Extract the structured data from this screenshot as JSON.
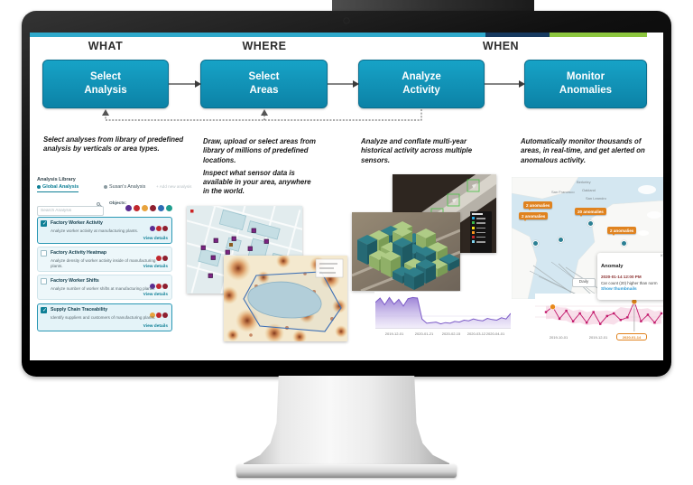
{
  "flow": {
    "headers": [
      "WHAT",
      "WHERE",
      "WHEN"
    ],
    "steps": [
      "Select\nAnalysis",
      "Select\nAreas",
      "Analyze\nActivity",
      "Monitor\nAnomalies"
    ]
  },
  "columns": {
    "what_desc": "Select analyses from library of predefined analysis by verticals or area types.",
    "where_desc_1": "Draw, upload or select areas from library of millions of predefined locations.",
    "where_desc_2": "Inspect what sensor data is available in your area, anywhere in the world.",
    "analyze_desc": "Analyze and conflate multi-year historical activity across multiple sensors.",
    "monitor_desc": "Automatically monitor thousands of areas, in real-time, and get alerted on anomalous activity."
  },
  "library": {
    "title": "Analysis Library",
    "tabs": [
      {
        "label": "Global Analysis",
        "active": true
      },
      {
        "label": "Susan's Analysis",
        "active": false
      },
      {
        "label": "+ Add new analysis",
        "active": false
      }
    ],
    "search_placeholder": "Search Analysis",
    "objects_label": "Objects:",
    "object_colors": [
      "#5C2D91",
      "#C1272D",
      "#E8A33D",
      "#8E1F2F",
      "#2D6CB5",
      "#1F9E8E"
    ],
    "items": [
      {
        "name": "Factory Worker Activity",
        "desc": "Analyze worker activity at manufacturing plants.",
        "checked": true,
        "icon_colors": [
          "#5C2D91",
          "#C1272D",
          "#8E1F2F"
        ],
        "link": "View details"
      },
      {
        "name": "Factory Activity Heatmap",
        "desc": "Analyze density of worker activity inside of manufacturing plants.",
        "checked": false,
        "icon_colors": [
          "#C1272D",
          "#8E1F2F"
        ],
        "link": "View details"
      },
      {
        "name": "Factory Worker Shifts",
        "desc": "Analyze number of worker shifts at manufacturing plants.",
        "checked": false,
        "icon_colors": [
          "#5C2D91",
          "#C1272D",
          "#8E1F2F"
        ],
        "link": "View details"
      },
      {
        "name": "Supply Chain Traceability",
        "desc": "Identify suppliers and customers of manufacturing plants.",
        "checked": true,
        "icon_colors": [
          "#E8A33D",
          "#C1272D",
          "#8E1F2F"
        ],
        "link": "View details"
      }
    ]
  },
  "anomaly_map": {
    "cities": [
      "Berkeley",
      "San Francisco",
      "Oakland",
      "San Leandro",
      "Fremont"
    ],
    "badges": [
      "2 anomalies",
      "2 anomalies",
      "20 anomalies",
      "2 anomalies"
    ],
    "daily_button": "Daily",
    "popup": {
      "title": "Anomaly",
      "close_icon": "×",
      "timestamp": "2020-01-14 12:00 PM",
      "message": "Car count (20) higher than norm",
      "link": "Show thumbnails"
    }
  },
  "chart_data": [
    {
      "name": "historical-activity-timeline",
      "type": "area",
      "x_ticks": [
        "2019-12-01",
        "2020-01-21",
        "2020-02-15",
        "2020-03-12",
        "2020-04-01"
      ],
      "values": [
        40,
        47,
        36,
        48,
        37,
        45,
        34,
        46,
        48,
        47,
        13,
        6,
        7,
        8,
        5,
        7,
        6,
        9,
        8,
        11,
        10,
        13,
        11,
        10,
        14,
        12,
        11,
        15,
        13,
        22
      ],
      "ylim": [
        0,
        50
      ],
      "color": "#7C5BC7"
    },
    {
      "name": "car-count-anomaly-timeline",
      "type": "line",
      "x_ticks": [
        "2019-10-01",
        "2019-12-01",
        "2020-01-14"
      ],
      "highlighted_tick": "2020-01-14",
      "values": [
        12,
        16,
        7,
        13,
        5,
        11,
        4,
        12,
        3,
        9,
        11,
        6,
        8,
        20,
        5,
        10,
        4,
        11
      ],
      "anomaly_indices": [
        1,
        13
      ],
      "ylim": [
        0,
        22
      ],
      "line_color": "#C2186B",
      "band_color": "#F3C9DC",
      "anomaly_color": "#E8891B"
    }
  ],
  "colors": {
    "topbar_teal": "#2FA9CB",
    "topbar_navy": "#16395F",
    "topbar_green": "#8CC63E",
    "step_box_fill": "#1095BB",
    "library_accent": "#0E7F96",
    "anomaly_orange": "#E0831F"
  },
  "sensor_legend_colors": [
    "#29ABE2",
    "#39B54A",
    "#F7E017",
    "#F7941D",
    "#C1272D",
    "#7FD4F0"
  ]
}
